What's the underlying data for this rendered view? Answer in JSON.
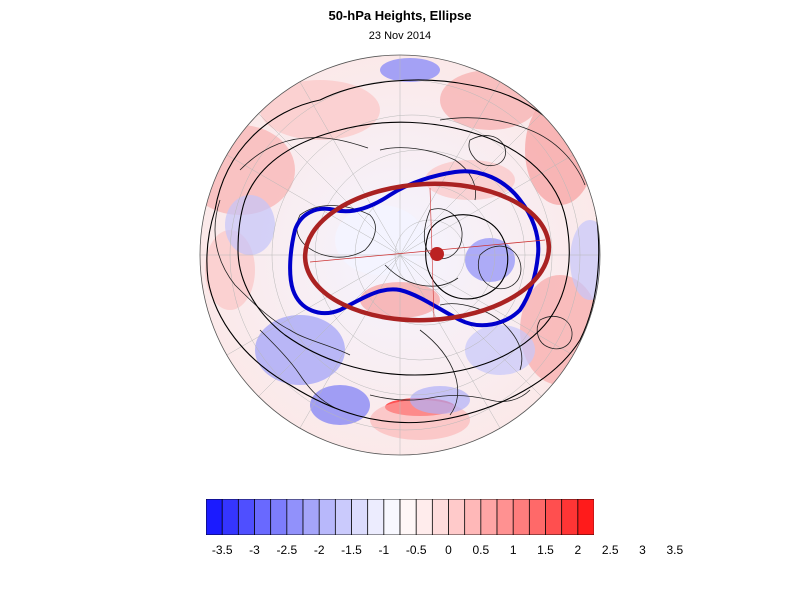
{
  "title": "50-hPa Heights, Ellipse",
  "subtitle": "23 Nov 2014",
  "colorbar": {
    "labels": [
      "-3.5",
      "-3",
      "-2.5",
      "-2",
      "-1.5",
      "-1",
      "-0.5",
      "0",
      "0.5",
      "1",
      "1.5",
      "2",
      "2.5",
      "3",
      "3.5"
    ],
    "colors": [
      "#1b1bff",
      "#3535ff",
      "#4f4fff",
      "#6969ff",
      "#7d7dfc",
      "#9191fb",
      "#a5a5fa",
      "#b8b8fb",
      "#cacafc",
      "#dcdcfd",
      "#ececfe",
      "#f8f8ff",
      "#fff7f7",
      "#ffecec",
      "#ffdcdc",
      "#ffcaca",
      "#ffb8b8",
      "#ffa5a5",
      "#ff9191",
      "#ff7d7d",
      "#ff6969",
      "#ff4f4f",
      "#ff3535",
      "#ff1b1b"
    ]
  },
  "styles": {
    "negative_contour_color": "#0000cc",
    "ellipse_color": "#aa2222",
    "center_marker_color": "#bb2222"
  }
}
